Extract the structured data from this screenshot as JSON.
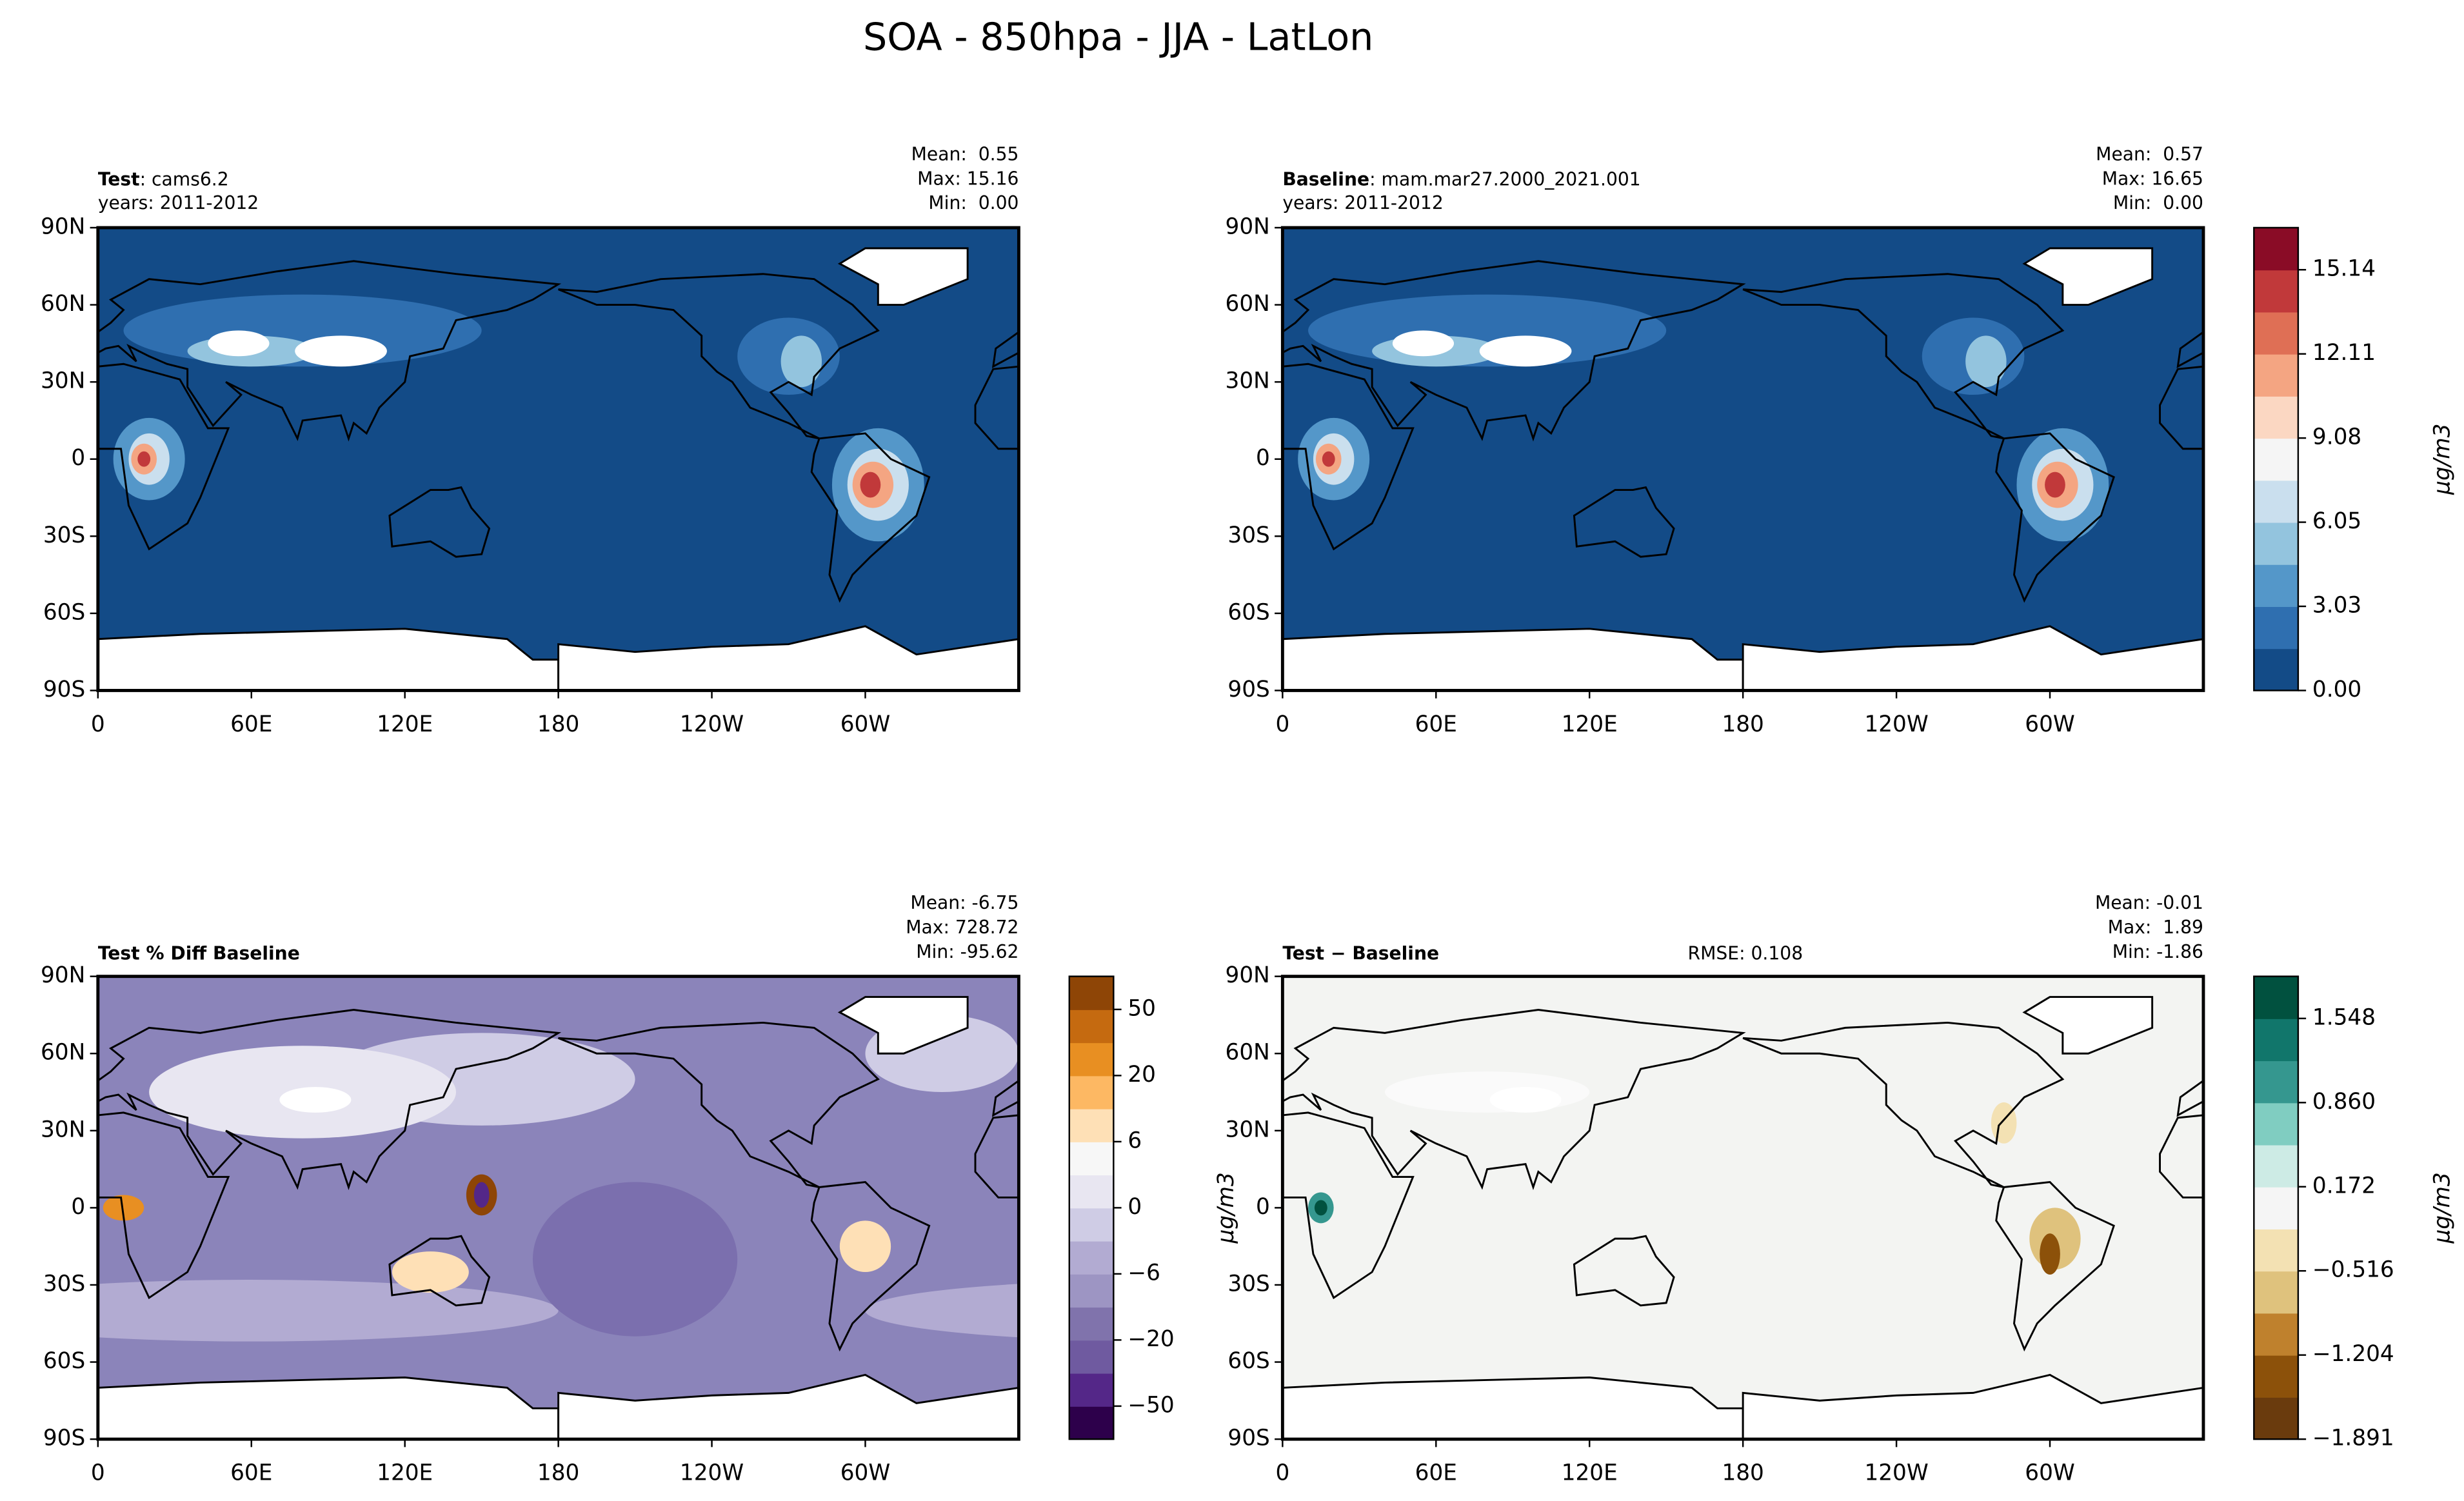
{
  "title": "SOA - 850hpa - JJA - LatLon",
  "lat_ticks": [
    "90N",
    "60N",
    "30N",
    "0",
    "30S",
    "60S",
    "90S"
  ],
  "lon_ticks": [
    "0",
    "60E",
    "120E",
    "180",
    "120W",
    "60W"
  ],
  "panels": [
    {
      "title_bold": "Test",
      "title_rest": ": cams6.2",
      "years": "years: 2011-2012",
      "stats": [
        "Mean:  0.55",
        "Max: 15.16",
        "Min:  0.00"
      ]
    },
    {
      "title_bold": "Baseline",
      "title_rest": ": mam.mar27.2000_2021.001",
      "years": "years: 2011-2012",
      "stats": [
        "Mean:  0.57",
        "Max: 16.65",
        "Min:  0.00"
      ],
      "colorbar": {
        "label": "μg/m3",
        "colors": [
          "#134b87",
          "#2f6fb0",
          "#5497c9",
          "#93c4de",
          "#cadfee",
          "#f5f5f5",
          "#fbd7c2",
          "#f4a582",
          "#df6f55",
          "#c1393a",
          "#8a0c26"
        ],
        "ticks": [
          "0.00",
          "3.03",
          "6.05",
          "9.08",
          "12.11",
          "15.14"
        ]
      }
    },
    {
      "title_bold": "Test % Diff Baseline",
      "stats": [
        "Mean: -6.75",
        "Max: 728.72",
        "Min: -95.62"
      ],
      "colorbar": {
        "label": "μg/m3",
        "colors": [
          "#2d004b",
          "#542788",
          "#6f5aa0",
          "#8073ac",
          "#9d95c3",
          "#b2abd2",
          "#cfcce5",
          "#e8e6f1",
          "#f7f7f7",
          "#fee0b6",
          "#fdb863",
          "#e88f22",
          "#c56a10",
          "#8e4506"
        ],
        "ticks": [
          "−50",
          "−20",
          "−6",
          "0",
          "6",
          "20",
          "50"
        ]
      }
    },
    {
      "title_bold": "Test − Baseline",
      "rmse": "RMSE: 0.108",
      "stats": [
        "Mean: -0.01",
        "Max:  1.89",
        "Min: -1.86"
      ],
      "colorbar": {
        "label": "μg/m3",
        "colors": [
          "#6a3b0d",
          "#8c510a",
          "#bf812d",
          "#dfc27d",
          "#f3e1b3",
          "#f5f5f5",
          "#cdebe5",
          "#80cdc1",
          "#35978f",
          "#11766b",
          "#01513f"
        ],
        "ticks": [
          "−1.891",
          "−1.204",
          "−0.516",
          "0.172",
          "0.860",
          "1.548"
        ]
      }
    }
  ]
}
